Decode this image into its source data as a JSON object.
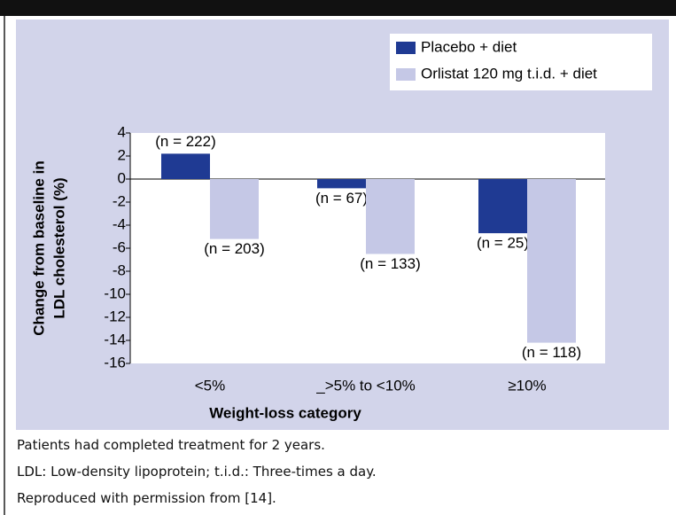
{
  "chart_data": {
    "type": "bar",
    "ylabel": [
      "Change from baseline in",
      "LDL cholesterol (%)"
    ],
    "xlabel": "Weight-loss category",
    "categories": [
      "<5%",
      "_>5% to <10%",
      "≥10%"
    ],
    "series": [
      {
        "name": "Placebo + diet",
        "color": "#1f3a93",
        "values": [
          2.2,
          -0.8,
          -4.7
        ],
        "annotations": [
          "(n = 222)",
          "(n = 67)",
          "(n = 25)"
        ]
      },
      {
        "name": "Orlistat 120 mg t.i.d. + diet",
        "color": "#c5c8e6",
        "values": [
          -5.2,
          -6.5,
          -14.2
        ],
        "annotations": [
          "(n = 203)",
          "(n = 133)",
          "(n = 118)"
        ]
      }
    ],
    "ylim": [
      -16,
      4
    ],
    "yticks": [
      4,
      2,
      0,
      -2,
      -4,
      -6,
      -8,
      -10,
      -12,
      -14,
      -16
    ]
  },
  "footnotes": [
    "Patients had completed treatment for 2 years.",
    "LDL: Low-density lipoprotein; t.i.d.: Three-times a day.",
    "Reproduced with permission from [14]."
  ]
}
